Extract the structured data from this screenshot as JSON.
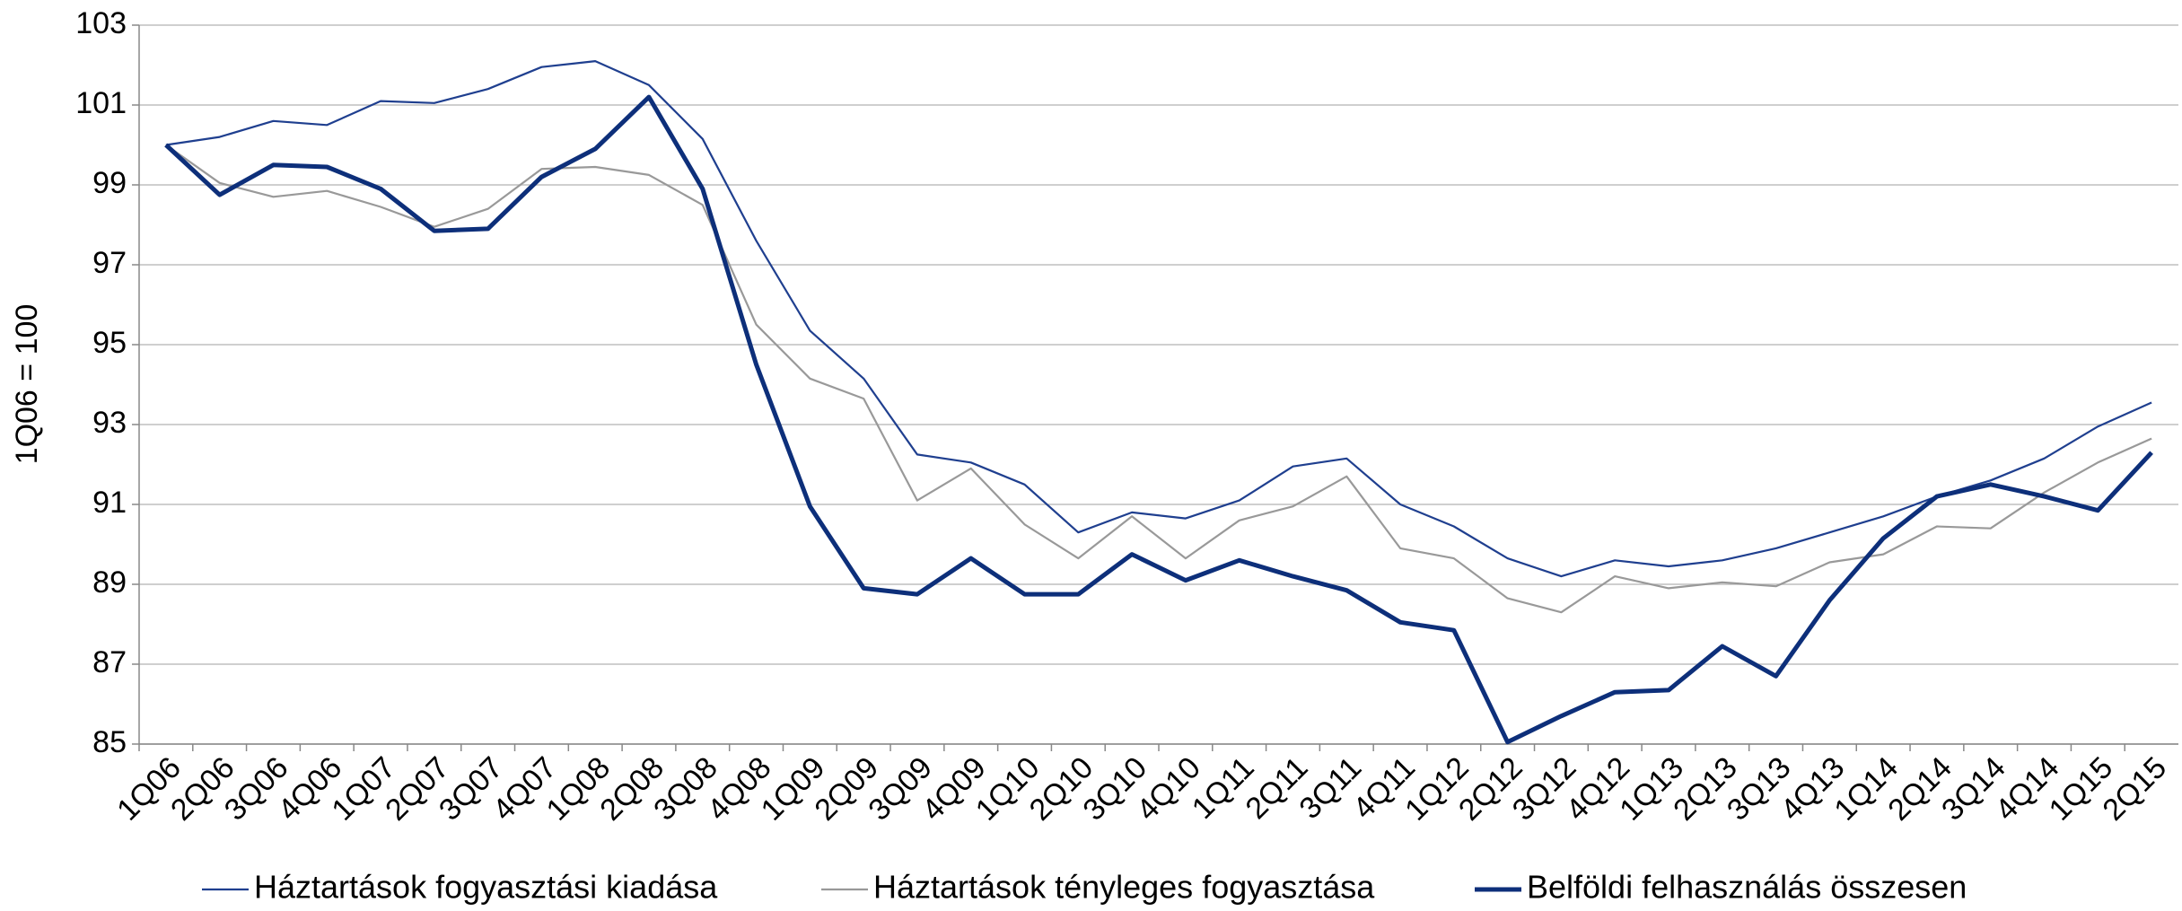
{
  "chart_data": {
    "type": "line",
    "y_label": "1Q06 = 100",
    "categories": [
      "1Q06",
      "2Q06",
      "3Q06",
      "4Q06",
      "1Q07",
      "2Q07",
      "3Q07",
      "4Q07",
      "1Q08",
      "2Q08",
      "3Q08",
      "4Q08",
      "1Q09",
      "2Q09",
      "3Q09",
      "4Q09",
      "1Q10",
      "2Q10",
      "3Q10",
      "4Q10",
      "1Q11",
      "2Q11",
      "3Q11",
      "4Q11",
      "1Q12",
      "2Q12",
      "3Q12",
      "4Q12",
      "1Q13",
      "2Q13",
      "3Q13",
      "4Q13",
      "1Q14",
      "2Q14",
      "3Q14",
      "4Q14",
      "1Q15",
      "2Q15"
    ],
    "series": [
      {
        "name": "Háztartások fogyasztási kiadása",
        "color": "#1f3f8f",
        "values": [
          100,
          100.2,
          100.6,
          100.5,
          101.1,
          101.05,
          101.4,
          101.95,
          102.1,
          101.5,
          100.15,
          97.6,
          95.35,
          94.15,
          92.25,
          92.05,
          91.5,
          90.3,
          90.8,
          90.65,
          91.1,
          91.95,
          92.15,
          91.0,
          90.45,
          89.65,
          89.2,
          89.6,
          89.45,
          89.6,
          89.9,
          90.3,
          90.7,
          91.2,
          91.6,
          92.15,
          92.95,
          93.55
        ]
      },
      {
        "name": "Háztartások tényleges fogyasztása",
        "color": "#999999",
        "values": [
          100,
          99.05,
          98.7,
          98.85,
          98.45,
          97.95,
          98.4,
          99.4,
          99.45,
          99.25,
          98.5,
          95.5,
          94.15,
          93.65,
          91.1,
          91.9,
          90.5,
          89.65,
          90.7,
          89.65,
          90.6,
          90.95,
          91.7,
          89.9,
          89.65,
          88.65,
          88.3,
          89.2,
          88.9,
          89.05,
          88.95,
          89.55,
          89.75,
          90.45,
          90.4,
          91.3,
          92.05,
          92.65
        ]
      },
      {
        "name": "Belföldi felhasználás összesen",
        "color": "#0d2f7a",
        "values": [
          100,
          98.75,
          99.5,
          99.45,
          98.9,
          97.85,
          97.9,
          99.2,
          99.9,
          101.2,
          98.9,
          94.5,
          90.95,
          88.9,
          88.75,
          89.65,
          88.75,
          88.75,
          89.75,
          89.1,
          89.6,
          89.2,
          88.85,
          88.05,
          87.85,
          85.05,
          85.7,
          86.3,
          86.35,
          87.45,
          86.7,
          88.6,
          90.15,
          91.2,
          91.5,
          91.2,
          90.85,
          92.3
        ]
      }
    ],
    "ylim": [
      85,
      103
    ],
    "yticks": [
      85,
      87,
      89,
      91,
      93,
      95,
      97,
      99,
      101,
      103
    ],
    "grid": true,
    "legend": "bottom"
  }
}
